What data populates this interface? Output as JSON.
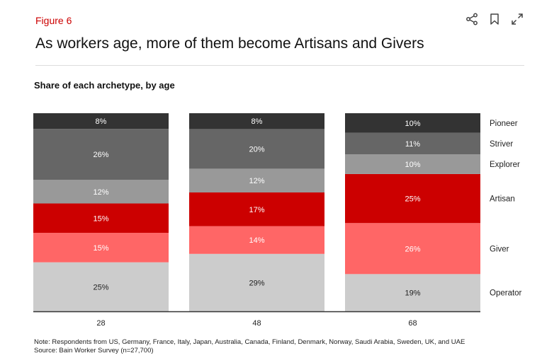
{
  "header": {
    "figure_label": "Figure 6",
    "title": "As workers age, more of them become Artisans and Givers",
    "subtitle": "Share of each archetype, by age",
    "toolbar": [
      {
        "name": "share-icon"
      },
      {
        "name": "bookmark-icon"
      },
      {
        "name": "expand-icon"
      }
    ]
  },
  "chart_data": {
    "type": "bar",
    "stacked": true,
    "normalized": true,
    "title": "Share of each archetype, by age",
    "xlabel": "",
    "ylabel": "",
    "ylim": [
      0,
      100
    ],
    "categories": [
      "28",
      "48",
      "68"
    ],
    "series": [
      {
        "name": "Operator",
        "color": "#cccccc",
        "text_color": "#222222",
        "values": [
          25,
          29,
          19
        ],
        "labels": [
          "25%",
          "29%",
          "19%"
        ]
      },
      {
        "name": "Giver",
        "color": "#ff6666",
        "text_color": "#ffffff",
        "values": [
          15,
          14,
          26
        ],
        "labels": [
          "15%",
          "14%",
          "26%"
        ]
      },
      {
        "name": "Artisan",
        "color": "#cc0000",
        "text_color": "#ffffff",
        "values": [
          15,
          17,
          25
        ],
        "labels": [
          "15%",
          "17%",
          "25%"
        ]
      },
      {
        "name": "Explorer",
        "color": "#999999",
        "text_color": "#ffffff",
        "values": [
          12,
          12,
          10
        ],
        "labels": [
          "12%",
          "12%",
          "10%"
        ]
      },
      {
        "name": "Striver",
        "color": "#666666",
        "text_color": "#ffffff",
        "values": [
          26,
          20,
          11
        ],
        "labels": [
          "26%",
          "20%",
          "11%"
        ]
      },
      {
        "name": "Pioneer",
        "color": "#333333",
        "text_color": "#ffffff",
        "values": [
          8,
          8,
          10
        ],
        "labels": [
          "8%",
          "8%",
          "10%"
        ]
      }
    ],
    "legend": "right",
    "grid": false
  },
  "footer": {
    "note": "Note: Respondents from US, Germany, France, Italy, Japan, Australia, Canada, Finland, Denmark, Norway, Saudi Arabia, Sweden, UK, and UAE",
    "source": "Source: Bain Worker Survey (n=27,700)"
  }
}
